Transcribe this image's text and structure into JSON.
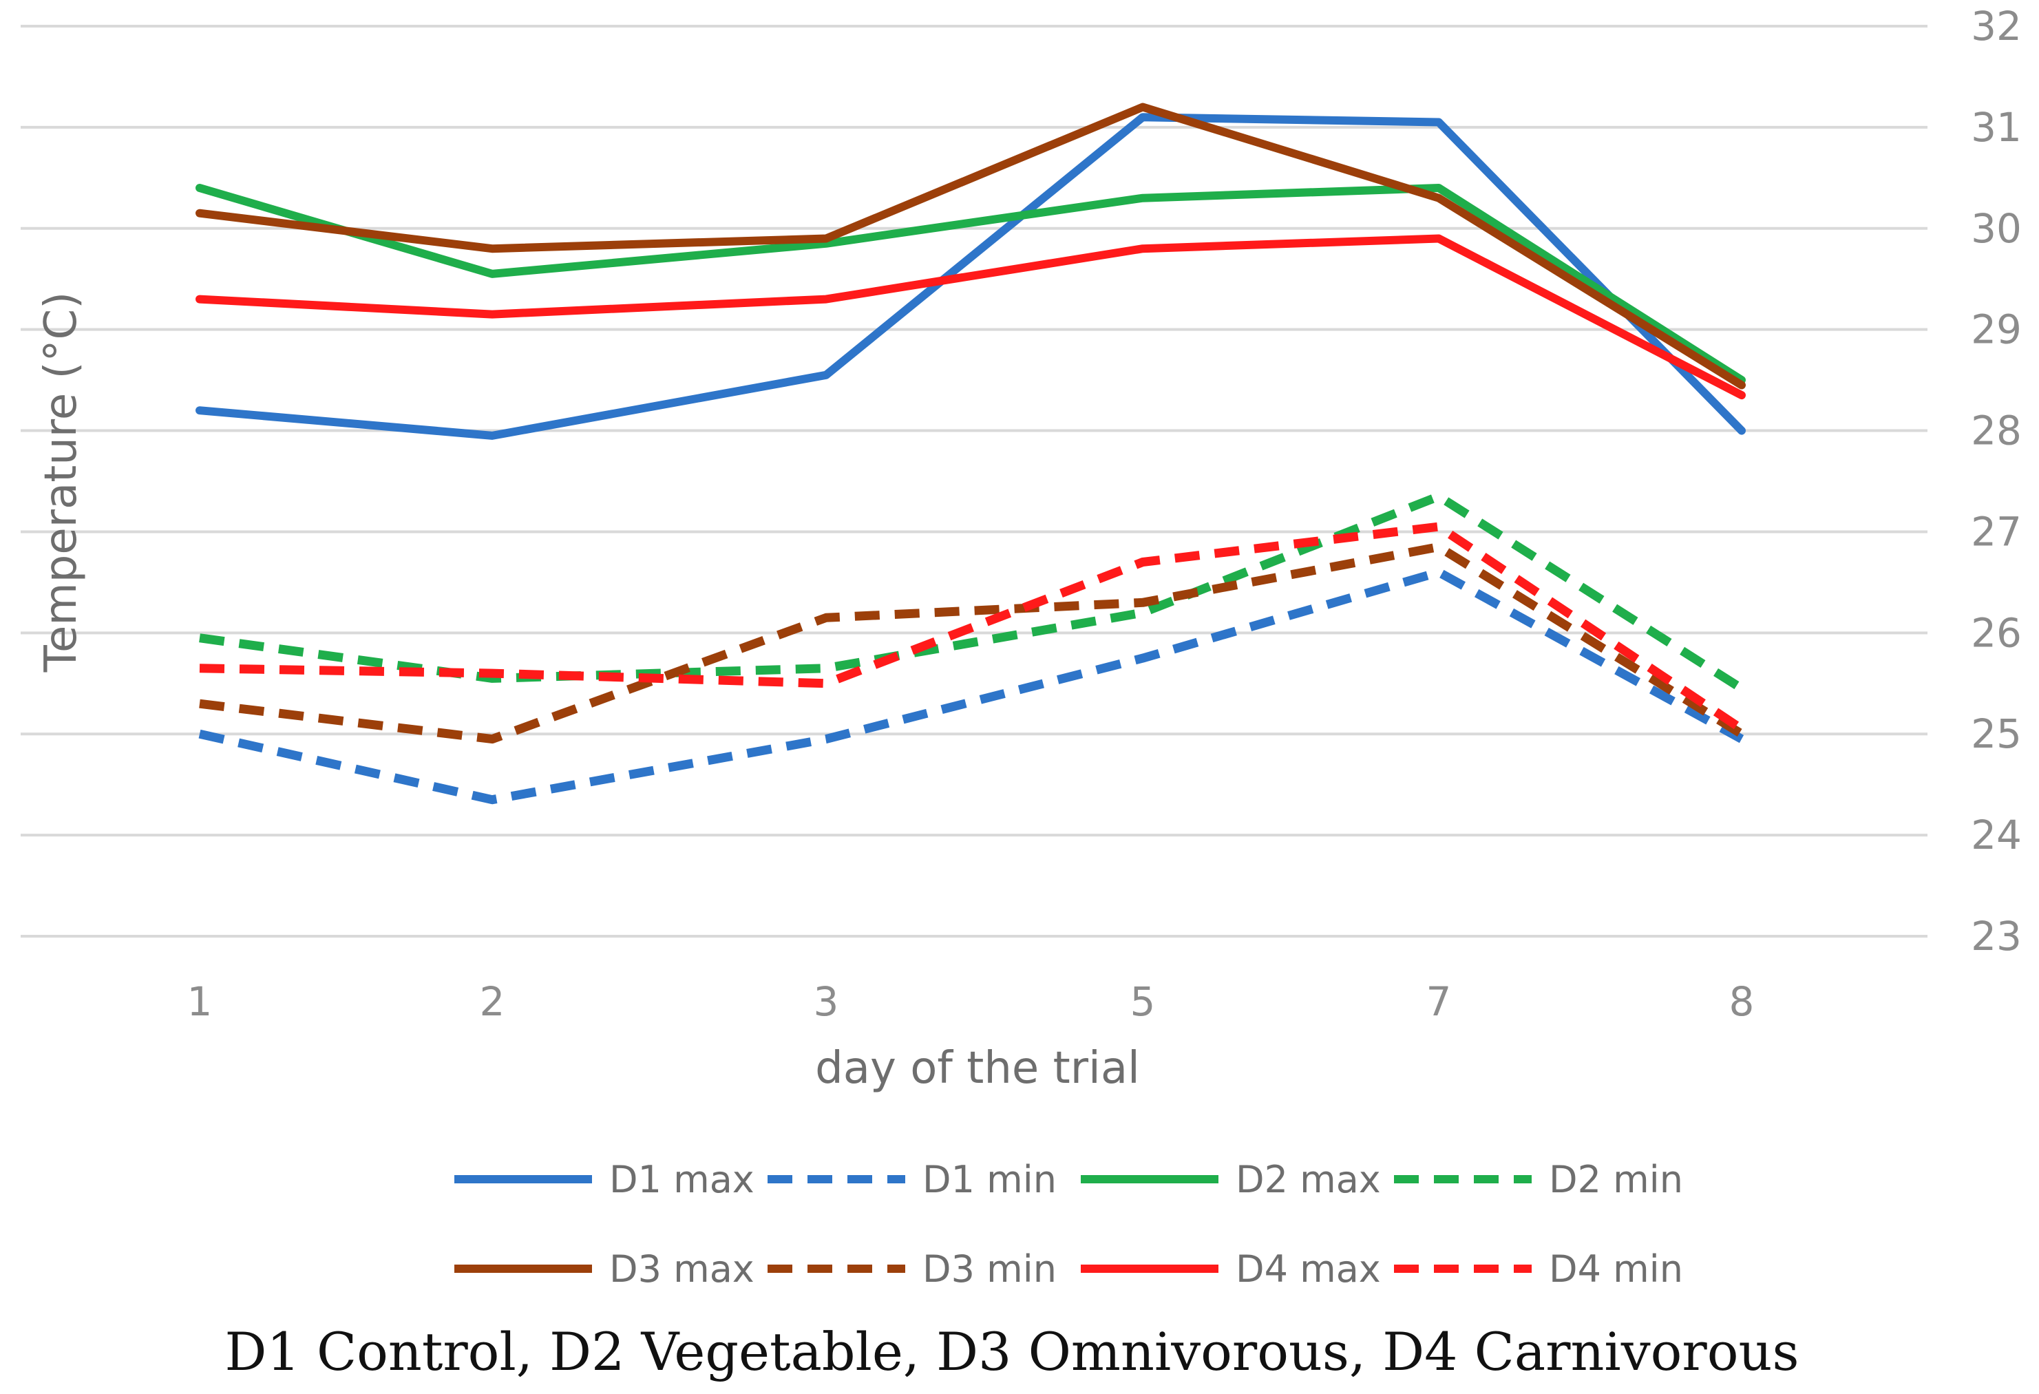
{
  "chart_data": {
    "type": "line",
    "title": "",
    "xlabel": "day of the trial",
    "ylabel": "Temperature (°C)",
    "categories": [
      "1",
      "2",
      "3",
      "5",
      "7",
      "8"
    ],
    "yticks": [
      23,
      24,
      25,
      26,
      27,
      28,
      29,
      30,
      31,
      32
    ],
    "ylim": [
      23,
      32
    ],
    "y_axis_side": "right",
    "grid": true,
    "legend_position": "bottom",
    "series": [
      {
        "name": "D1 max",
        "color": "#2e75c9",
        "style": "solid",
        "values": [
          28.2,
          27.95,
          28.55,
          31.1,
          31.05,
          28.0
        ]
      },
      {
        "name": "D1 min",
        "color": "#2e75c9",
        "style": "dashed",
        "values": [
          25.0,
          24.35,
          24.95,
          25.75,
          26.6,
          24.95
        ]
      },
      {
        "name": "D2 max",
        "color": "#1fae4b",
        "style": "solid",
        "values": [
          30.4,
          29.55,
          29.85,
          30.3,
          30.4,
          28.5
        ]
      },
      {
        "name": "D2 min",
        "color": "#1fae4b",
        "style": "dashed",
        "values": [
          25.95,
          25.55,
          25.65,
          26.2,
          27.35,
          25.45
        ]
      },
      {
        "name": "D3 max",
        "color": "#9c3f0a",
        "style": "solid",
        "values": [
          30.15,
          29.8,
          29.9,
          31.2,
          30.3,
          28.45
        ]
      },
      {
        "name": "D3 min",
        "color": "#9c3f0a",
        "style": "dashed",
        "values": [
          25.3,
          24.95,
          26.15,
          26.3,
          26.85,
          25.0
        ]
      },
      {
        "name": "D4 max",
        "color": "#ff1a1a",
        "style": "solid",
        "values": [
          29.3,
          29.15,
          29.3,
          29.8,
          29.9,
          28.35
        ]
      },
      {
        "name": "D4 min",
        "color": "#ff1a1a",
        "style": "dashed",
        "values": [
          25.65,
          25.6,
          25.5,
          26.7,
          27.05,
          25.05
        ]
      }
    ]
  },
  "caption": "D1 Control, D2 Vegetable, D3 Omnivorous, D4 Carnivorous"
}
